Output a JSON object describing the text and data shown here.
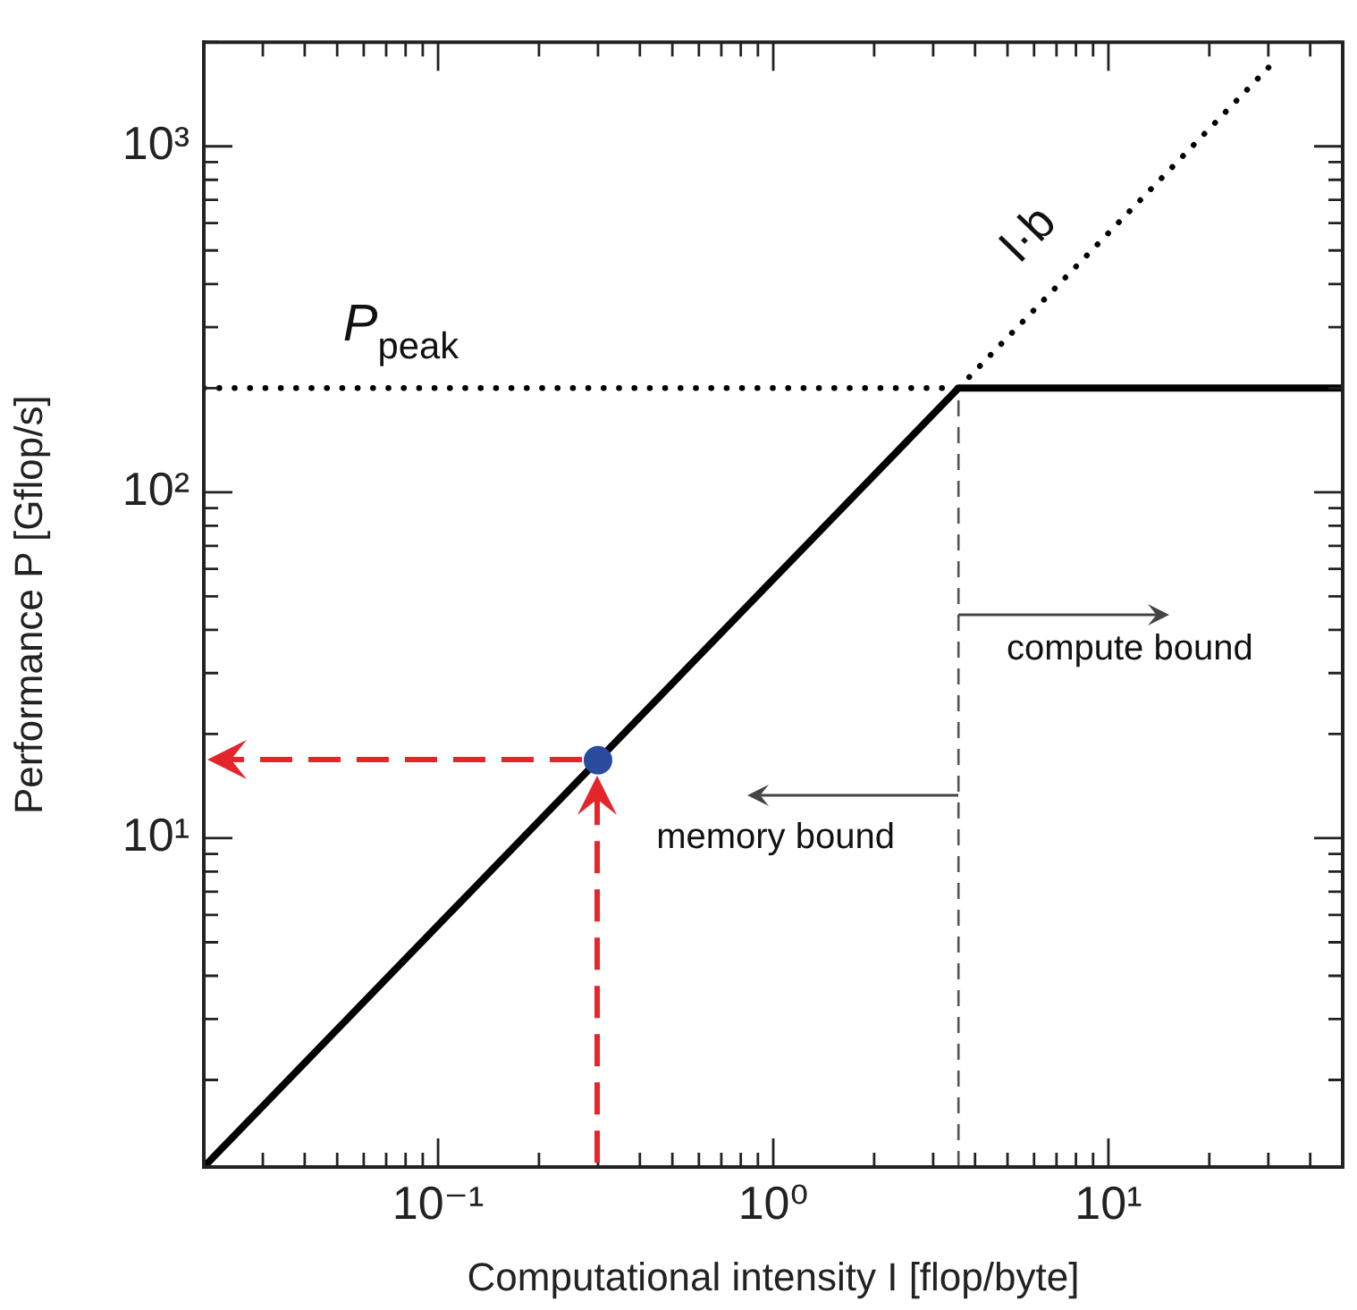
{
  "chart_data": {
    "type": "line",
    "xlabel": "Computational intensity I [flop/byte]",
    "ylabel": "Performance P [Gflop/s]",
    "log": "xy",
    "grid": false,
    "legend": false,
    "marker": "none",
    "xlim": [
      0.02,
      50
    ],
    "ylim": [
      1.12,
      2000
    ],
    "xticks": [
      {
        "value": 0.02,
        "label": null
      },
      {
        "value": 0.03,
        "label": null
      },
      {
        "value": 0.04,
        "label": null
      },
      {
        "value": 0.05,
        "label": null
      },
      {
        "value": 0.06,
        "label": null
      },
      {
        "value": 0.07,
        "label": null
      },
      {
        "value": 0.08,
        "label": null
      },
      {
        "value": 0.09,
        "label": null
      },
      {
        "value": 0.1,
        "label": "10⁻¹"
      },
      {
        "value": 0.2,
        "label": null
      },
      {
        "value": 0.3,
        "label": null
      },
      {
        "value": 0.4,
        "label": null
      },
      {
        "value": 0.5,
        "label": null
      },
      {
        "value": 0.6,
        "label": null
      },
      {
        "value": 0.7,
        "label": null
      },
      {
        "value": 0.8,
        "label": null
      },
      {
        "value": 0.9,
        "label": null
      },
      {
        "value": 1,
        "label": "10⁰"
      },
      {
        "value": 2,
        "label": null
      },
      {
        "value": 3,
        "label": null
      },
      {
        "value": 4,
        "label": null
      },
      {
        "value": 5,
        "label": null
      },
      {
        "value": 6,
        "label": null
      },
      {
        "value": 7,
        "label": null
      },
      {
        "value": 8,
        "label": null
      },
      {
        "value": 9,
        "label": null
      },
      {
        "value": 10,
        "label": "10¹"
      },
      {
        "value": 20,
        "label": null
      },
      {
        "value": 30,
        "label": null
      },
      {
        "value": 40,
        "label": null
      },
      {
        "value": 50,
        "label": null
      }
    ],
    "yticks": [
      {
        "value": 2,
        "label": null
      },
      {
        "value": 3,
        "label": null
      },
      {
        "value": 4,
        "label": null
      },
      {
        "value": 5,
        "label": null
      },
      {
        "value": 6,
        "label": null
      },
      {
        "value": 7,
        "label": null
      },
      {
        "value": 8,
        "label": null
      },
      {
        "value": 9,
        "label": null
      },
      {
        "value": 10,
        "label": "10¹"
      },
      {
        "value": 20,
        "label": null
      },
      {
        "value": 30,
        "label": null
      },
      {
        "value": 40,
        "label": null
      },
      {
        "value": 50,
        "label": null
      },
      {
        "value": 60,
        "label": null
      },
      {
        "value": 70,
        "label": null
      },
      {
        "value": 80,
        "label": null
      },
      {
        "value": 90,
        "label": null
      },
      {
        "value": 100,
        "label": "10²"
      },
      {
        "value": 200,
        "label": null
      },
      {
        "value": 300,
        "label": null
      },
      {
        "value": 400,
        "label": null
      },
      {
        "value": 500,
        "label": null
      },
      {
        "value": 600,
        "label": null
      },
      {
        "value": 700,
        "label": null
      },
      {
        "value": 800,
        "label": null
      },
      {
        "value": 900,
        "label": null
      },
      {
        "value": 1000,
        "label": "10³"
      },
      {
        "value": 2000,
        "label": null
      }
    ],
    "series": [
      {
        "color": "#000000",
        "x": [
          0.02,
          3.57,
          50
        ],
        "values": [
          1.12,
          200,
          200
        ],
        "line_style": "solid"
      },
      {
        "color": "#000000",
        "x": [
          3.57,
          32
        ],
        "values": [
          200,
          1800
        ],
        "line_style": "dotted"
      },
      {
        "color": "#000000",
        "x": [
          0.02,
          3.57
        ],
        "values": [
          200,
          200
        ],
        "line_style": "dotted"
      },
      {
        "color": "#555555",
        "x": [
          3.57,
          3.57
        ],
        "values": [
          1.12,
          200
        ],
        "line_style": "dashed"
      },
      {
        "type": "scatter",
        "color": "#2b4c9c",
        "x": [
          0.3
        ],
        "values": [
          16.8
        ],
        "marker": "circle"
      }
    ],
    "annotations": [
      "P$_{peak}$",
      "I·b",
      {
        "text": "compute bound",
        "x": 3.57,
        "y": 44
      },
      {
        "text": "memory bound",
        "x": 3.57,
        "y": 13.3
      }
    ]
  }
}
